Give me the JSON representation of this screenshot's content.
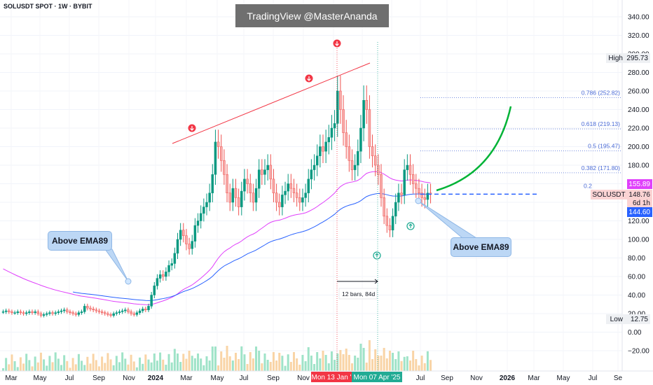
{
  "symbol_title": "SOLUSDT SPOT · 1W · BYBIT",
  "watermark": "TradingView @MasterAnanda",
  "callouts": {
    "left": "Above EMA89",
    "right": "Above EMA89"
  },
  "range_label": "12 bars, 84d",
  "fib_labels": [
    "0.786 (252.82)",
    "0.618 (219.13)",
    "0.5 (195.47)",
    "0.382 (171.80)",
    "0.2"
  ],
  "price_tags": {
    "high_label": "High",
    "high_value": "295.73",
    "low_label": "Low",
    "low_value": "12.75",
    "pink_value": "155.89",
    "symbol": "SOLUSDT",
    "last_price": "148.76",
    "countdown": "6d 1h",
    "ema_value": "144.60"
  },
  "date_highlights": [
    "Mon 13 Jan '",
    "Mon 07 Apr '25"
  ],
  "colors": {
    "up": "#26a69a",
    "up_bright": "#089981",
    "down": "#ef5350",
    "ema89": "#2962ff",
    "ema_pink": "#e040fb",
    "trendline": "#f23645",
    "arrow_green": "#22ab94",
    "projection": "#00b336"
  },
  "chart_data": {
    "type": "candlestick",
    "title": "SOLUSDT SPOT · 1W · BYBIT",
    "y_ticks": [
      -20,
      0,
      20,
      40,
      60,
      80,
      100,
      120,
      140,
      160,
      180,
      200,
      220,
      240,
      260,
      280,
      300,
      320,
      340
    ],
    "ylim": [
      -30,
      350
    ],
    "x_ticks": [
      "Mar",
      "May",
      "Jul",
      "Sep",
      "Nov",
      "2024",
      "Mar",
      "May",
      "Jul",
      "Sep",
      "Nov",
      "Jan",
      "Mar",
      "May",
      "Jul",
      "Sep",
      "Nov",
      "2026",
      "Mar",
      "May",
      "Jul",
      "Se"
    ],
    "high": 295.73,
    "low": 12.75,
    "last_price": 148.76,
    "ema89": 144.6,
    "ema_pink": 155.89,
    "fibonacci": [
      {
        "level": 0.786,
        "price": 252.82
      },
      {
        "level": 0.618,
        "price": 219.13
      },
      {
        "level": 0.5,
        "price": 195.47
      },
      {
        "level": 0.382,
        "price": 171.8
      }
    ],
    "weekly_closes": [
      {
        "start_week": 0,
        "values": [
          22,
          23,
          22,
          21,
          21,
          22,
          21,
          20,
          21,
          22,
          21,
          22,
          20,
          18,
          19,
          20,
          21,
          20,
          21,
          22,
          23,
          24,
          22,
          21,
          20,
          19,
          21,
          22,
          28,
          26,
          25,
          24,
          23,
          22,
          21,
          20,
          19,
          18,
          20,
          21,
          22,
          23,
          24,
          22,
          20,
          19,
          21,
          23,
          25,
          24,
          28,
          40,
          50,
          58,
          62,
          60,
          65,
          72,
          74,
          85,
          100,
          110,
          104,
          95,
          90,
          98,
          115,
          120,
          128,
          135,
          140,
          150,
          170,
          205,
          200,
          185,
          170,
          150,
          140,
          155,
          145,
          135,
          152,
          165,
          160,
          150,
          140,
          155,
          175,
          170,
          175,
          180,
          165,
          150,
          140,
          135,
          148,
          152,
          160,
          155,
          150,
          145,
          140,
          145,
          150,
          165,
          175,
          180,
          190,
          200,
          195,
          205,
          210,
          220,
          225,
          260,
          240,
          215,
          200,
          185,
          175,
          180,
          195,
          220,
          250,
          240,
          200,
          190,
          180,
          170,
          145,
          125,
          115,
          110,
          125,
          140,
          150,
          148,
          175,
          180,
          170,
          160,
          155,
          150,
          145,
          143,
          150,
          148.76
        ]
      }
    ]
  }
}
